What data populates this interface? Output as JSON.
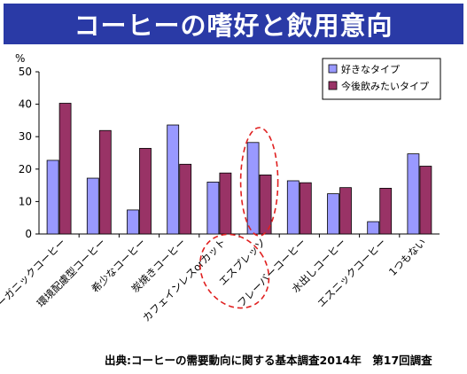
{
  "header": {
    "title": "コーヒーの嗜好と飲用意向"
  },
  "source_note": "出典:コーヒーの需要動向に関する基本調査2014年　第17回調査",
  "colors": {
    "banner": "#2a3aa6",
    "series_like": "#9999ff",
    "series_want": "#993366",
    "highlight": "#e02020"
  },
  "chart_data": {
    "type": "bar",
    "ylabel": "%",
    "ylim": [
      0,
      50
    ],
    "yticks": [
      0,
      10,
      20,
      30,
      40,
      50
    ],
    "grid": false,
    "legend": "top-right",
    "categories": [
      "オーガニックコーヒー",
      "環境配慮型コーヒー",
      "希少なコーヒー",
      "炭焼きコーヒー",
      "カフェインレスorカット",
      "エスプレッソ",
      "フレーバーコーヒー",
      "水出しコーヒー",
      "エスニックコーヒー",
      "1つもない"
    ],
    "series": [
      {
        "name": "好きなタイプ",
        "color": "#9999ff",
        "values": [
          22.7,
          17.2,
          7.4,
          33.6,
          16.0,
          28.2,
          16.4,
          12.4,
          3.8,
          24.7
        ]
      },
      {
        "name": "今後飲みたいタイプ",
        "color": "#993366",
        "values": [
          40.3,
          31.9,
          26.4,
          21.5,
          18.8,
          18.2,
          15.8,
          14.3,
          14.1,
          20.9
        ]
      }
    ],
    "annotations": [
      "エスプレッソ: dashed red ellipse highlight on bars and label"
    ]
  }
}
